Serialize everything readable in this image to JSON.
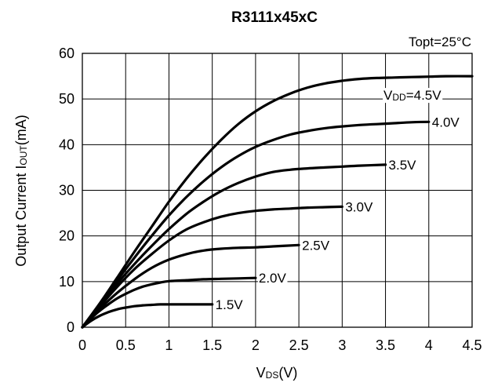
{
  "chart_data": {
    "type": "line",
    "title": "R3111x45xC",
    "annotation": "Topt=25°C",
    "xlabel": {
      "main": "V",
      "sub": "DS",
      "tail": "(V)"
    },
    "ylabel": {
      "main": "Output Current I",
      "sub": "OUT",
      "tail": "(mA)"
    },
    "xlim": [
      0,
      4.5
    ],
    "ylim": [
      0,
      60
    ],
    "xticks": [
      "0",
      "0.5",
      "1",
      "1.5",
      "2",
      "2.5",
      "3",
      "3.5",
      "4",
      "4.5"
    ],
    "yticks": [
      "0",
      "10",
      "20",
      "30",
      "40",
      "50",
      "60"
    ],
    "grid": true,
    "colors": {
      "line": "#000000",
      "grid": "#000000",
      "background": "#ffffff"
    },
    "series": [
      {
        "label": "1.5V",
        "x": [
          0,
          0.1,
          0.2,
          0.3,
          0.4,
          0.5,
          0.6,
          0.7,
          0.8,
          0.9,
          1.0,
          1.1,
          1.2,
          1.3,
          1.5
        ],
        "y": [
          0,
          1.4,
          2.5,
          3.3,
          3.9,
          4.3,
          4.6,
          4.8,
          4.9,
          5.0,
          5.0,
          5.0,
          5.0,
          5.0,
          5.0
        ]
      },
      {
        "label": "2.0V",
        "x": [
          0,
          0.1,
          0.2,
          0.3,
          0.4,
          0.5,
          0.6,
          0.7,
          0.8,
          0.9,
          1.0,
          1.2,
          1.4,
          1.6,
          1.8,
          2.0
        ],
        "y": [
          0,
          1.9,
          3.6,
          5.0,
          6.3,
          7.3,
          8.2,
          8.9,
          9.4,
          9.8,
          10.1,
          10.3,
          10.5,
          10.6,
          10.7,
          10.8
        ]
      },
      {
        "label": "2.5V",
        "x": [
          0,
          0.2,
          0.4,
          0.6,
          0.8,
          1.0,
          1.2,
          1.4,
          1.6,
          1.8,
          2.0,
          2.2,
          2.5
        ],
        "y": [
          0,
          4.0,
          7.5,
          10.5,
          13.0,
          14.8,
          16.0,
          16.8,
          17.2,
          17.4,
          17.5,
          17.7,
          18.0
        ]
      },
      {
        "label": "3.0V",
        "x": [
          0,
          0.2,
          0.4,
          0.6,
          0.8,
          1.0,
          1.2,
          1.4,
          1.6,
          1.8,
          2.0,
          2.2,
          2.4,
          2.6,
          2.8,
          3.0
        ],
        "y": [
          0,
          4.5,
          8.8,
          12.7,
          16.0,
          19.0,
          21.4,
          23.0,
          24.2,
          25.0,
          25.5,
          25.8,
          26.0,
          26.2,
          26.3,
          26.4
        ]
      },
      {
        "label": "3.5V",
        "x": [
          0,
          0.2,
          0.4,
          0.6,
          0.8,
          1.0,
          1.2,
          1.4,
          1.6,
          1.8,
          2.0,
          2.2,
          2.4,
          2.6,
          2.8,
          3.0,
          3.2,
          3.5
        ],
        "y": [
          0,
          4.8,
          9.5,
          13.8,
          17.8,
          21.5,
          24.8,
          27.5,
          29.8,
          31.6,
          33.0,
          34.0,
          34.5,
          34.8,
          35.0,
          35.2,
          35.4,
          35.6
        ]
      },
      {
        "label": "4.0V",
        "x": [
          0,
          0.2,
          0.4,
          0.6,
          0.8,
          1.0,
          1.2,
          1.4,
          1.6,
          1.8,
          2.0,
          2.2,
          2.4,
          2.6,
          2.8,
          3.0,
          3.2,
          3.4,
          3.6,
          3.8,
          4.0
        ],
        "y": [
          0,
          5.0,
          10.2,
          15.2,
          20.0,
          24.5,
          28.5,
          32.0,
          35.0,
          37.5,
          39.5,
          41.0,
          42.2,
          43.0,
          43.6,
          44.0,
          44.3,
          44.5,
          44.7,
          44.9,
          45.0
        ]
      },
      {
        "label": "V",
        "label_sub": "DD",
        "label_tail": "=4.5V",
        "x": [
          0,
          0.2,
          0.4,
          0.6,
          0.8,
          1.0,
          1.2,
          1.4,
          1.6,
          1.8,
          2.0,
          2.2,
          2.4,
          2.6,
          2.8,
          3.0,
          3.2,
          3.4,
          3.6,
          3.8,
          4.0,
          4.2,
          4.5
        ],
        "y": [
          0,
          5.2,
          10.8,
          16.5,
          22.0,
          27.5,
          32.5,
          37.0,
          41.0,
          44.5,
          47.3,
          49.5,
          51.2,
          52.5,
          53.4,
          54.0,
          54.4,
          54.6,
          54.7,
          54.8,
          54.9,
          55.0,
          55.0
        ]
      }
    ]
  }
}
